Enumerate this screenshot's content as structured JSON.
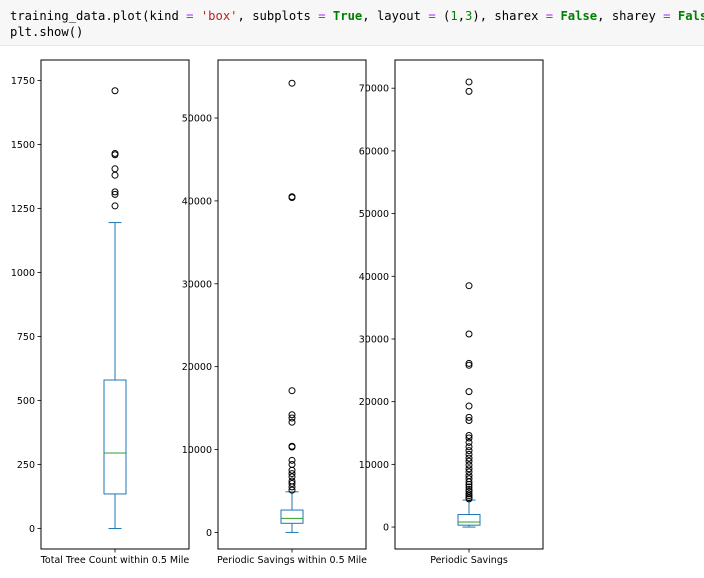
{
  "code_cell": {
    "line1": [
      {
        "t": "training_data",
        "c": "plain"
      },
      {
        "t": ".",
        "c": "plain"
      },
      {
        "t": "plot",
        "c": "plain"
      },
      {
        "t": "(",
        "c": "plain"
      },
      {
        "t": "kind",
        "c": "plain"
      },
      {
        "t": " = ",
        "c": "op"
      },
      {
        "t": "'box'",
        "c": "str"
      },
      {
        "t": ", ",
        "c": "plain"
      },
      {
        "t": "subplots",
        "c": "plain"
      },
      {
        "t": " = ",
        "c": "op"
      },
      {
        "t": "True",
        "c": "kw"
      },
      {
        "t": ", ",
        "c": "plain"
      },
      {
        "t": "layout",
        "c": "plain"
      },
      {
        "t": " = ",
        "c": "op"
      },
      {
        "t": "(",
        "c": "plain"
      },
      {
        "t": "1",
        "c": "num"
      },
      {
        "t": ",",
        "c": "plain"
      },
      {
        "t": "3",
        "c": "num"
      },
      {
        "t": "), ",
        "c": "plain"
      },
      {
        "t": "sharex",
        "c": "plain"
      },
      {
        "t": " = ",
        "c": "op"
      },
      {
        "t": "False",
        "c": "kw"
      },
      {
        "t": ", ",
        "c": "plain"
      },
      {
        "t": "sharey",
        "c": "plain"
      },
      {
        "t": " = ",
        "c": "op"
      },
      {
        "t": "False",
        "c": "kw"
      },
      {
        "t": ")",
        "c": "plain"
      }
    ],
    "line2": [
      {
        "t": "plt",
        "c": "plain"
      },
      {
        "t": ".",
        "c": "plain"
      },
      {
        "t": "show",
        "c": "plain"
      },
      {
        "t": "()",
        "c": "plain"
      }
    ]
  },
  "colors": {
    "box": "#1f77b4",
    "median": "#2ca02c",
    "outlier": "#000000",
    "axes": "#000000"
  },
  "chart_data": [
    {
      "type": "box",
      "xlabel": "Total Tree Count within 0.5 Mile",
      "ylim": [
        -80,
        1830
      ],
      "yticks": [
        0,
        250,
        500,
        750,
        1000,
        1250,
        1500,
        1750
      ],
      "box": {
        "min": 0,
        "q1": 135,
        "median": 295,
        "q3": 580,
        "max": 1195
      },
      "outliers": [
        1260,
        1305,
        1315,
        1380,
        1405,
        1460,
        1465,
        1710
      ]
    },
    {
      "type": "box",
      "xlabel": "Periodic Savings within 0.5 Mile",
      "ylim": [
        -2000,
        57000
      ],
      "yticks": [
        0,
        10000,
        20000,
        30000,
        40000,
        50000
      ],
      "box": {
        "min": 0,
        "q1": 1100,
        "median": 1700,
        "q3": 2700,
        "max": 4900
      },
      "outliers": [
        5100,
        5500,
        5900,
        6200,
        6700,
        7100,
        7500,
        8200,
        8700,
        10300,
        10400,
        13300,
        13800,
        14200,
        17100,
        40400,
        40500,
        54200
      ]
    },
    {
      "type": "box",
      "xlabel": "Periodic Savings",
      "ylim": [
        -3500,
        74500
      ],
      "yticks": [
        0,
        10000,
        20000,
        30000,
        40000,
        50000,
        60000,
        70000
      ],
      "box": {
        "min": 0,
        "q1": 300,
        "median": 800,
        "q3": 2000,
        "max": 4300
      },
      "outliers": [
        4500,
        4700,
        5000,
        5300,
        5700,
        6000,
        6400,
        6800,
        7200,
        7700,
        8200,
        8800,
        9300,
        9900,
        10500,
        11000,
        11600,
        12200,
        12800,
        13500,
        14200,
        14600,
        17000,
        17500,
        19300,
        21600,
        25800,
        26100,
        30800,
        38500,
        69500,
        71000
      ]
    }
  ]
}
